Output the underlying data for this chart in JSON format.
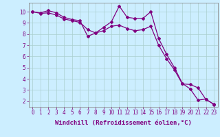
{
  "line1_x": [
    0,
    1,
    2,
    3,
    4,
    5,
    6,
    7,
    8,
    9,
    10,
    11,
    12,
    13,
    14,
    15,
    16,
    17,
    18,
    19,
    20,
    21,
    22,
    23
  ],
  "line1_y": [
    10.0,
    9.9,
    10.1,
    9.9,
    9.5,
    9.3,
    9.2,
    7.8,
    8.1,
    8.6,
    9.1,
    10.5,
    9.5,
    9.4,
    9.4,
    10.0,
    7.6,
    6.2,
    5.0,
    3.6,
    3.1,
    2.1,
    2.2,
    1.7
  ],
  "line2_x": [
    0,
    1,
    2,
    3,
    4,
    5,
    6,
    7,
    8,
    9,
    10,
    11,
    12,
    13,
    14,
    15,
    16,
    17,
    18,
    19,
    20,
    21,
    22,
    23
  ],
  "line2_y": [
    10.0,
    9.85,
    9.9,
    9.7,
    9.35,
    9.2,
    9.05,
    8.4,
    8.1,
    8.3,
    8.7,
    8.8,
    8.5,
    8.3,
    8.4,
    8.7,
    7.0,
    5.8,
    4.8,
    3.55,
    3.5,
    3.2,
    2.15,
    1.75
  ],
  "line_color": "#800080",
  "bg_color": "#cceeff",
  "grid_color": "#aacfcf",
  "axis_color": "#800080",
  "xlabel": "Windchill (Refroidissement éolien,°C)",
  "xlim_min": -0.5,
  "xlim_max": 23.5,
  "ylim_min": 1.5,
  "ylim_max": 10.8,
  "xticks": [
    0,
    1,
    2,
    3,
    4,
    5,
    6,
    7,
    8,
    9,
    10,
    11,
    12,
    13,
    14,
    15,
    16,
    17,
    18,
    19,
    20,
    21,
    22,
    23
  ],
  "yticks": [
    2,
    3,
    4,
    5,
    6,
    7,
    8,
    9,
    10
  ],
  "marker": "D",
  "markersize": 2.0,
  "linewidth": 0.9,
  "xlabel_fontsize": 6.5,
  "tick_fontsize": 5.5
}
